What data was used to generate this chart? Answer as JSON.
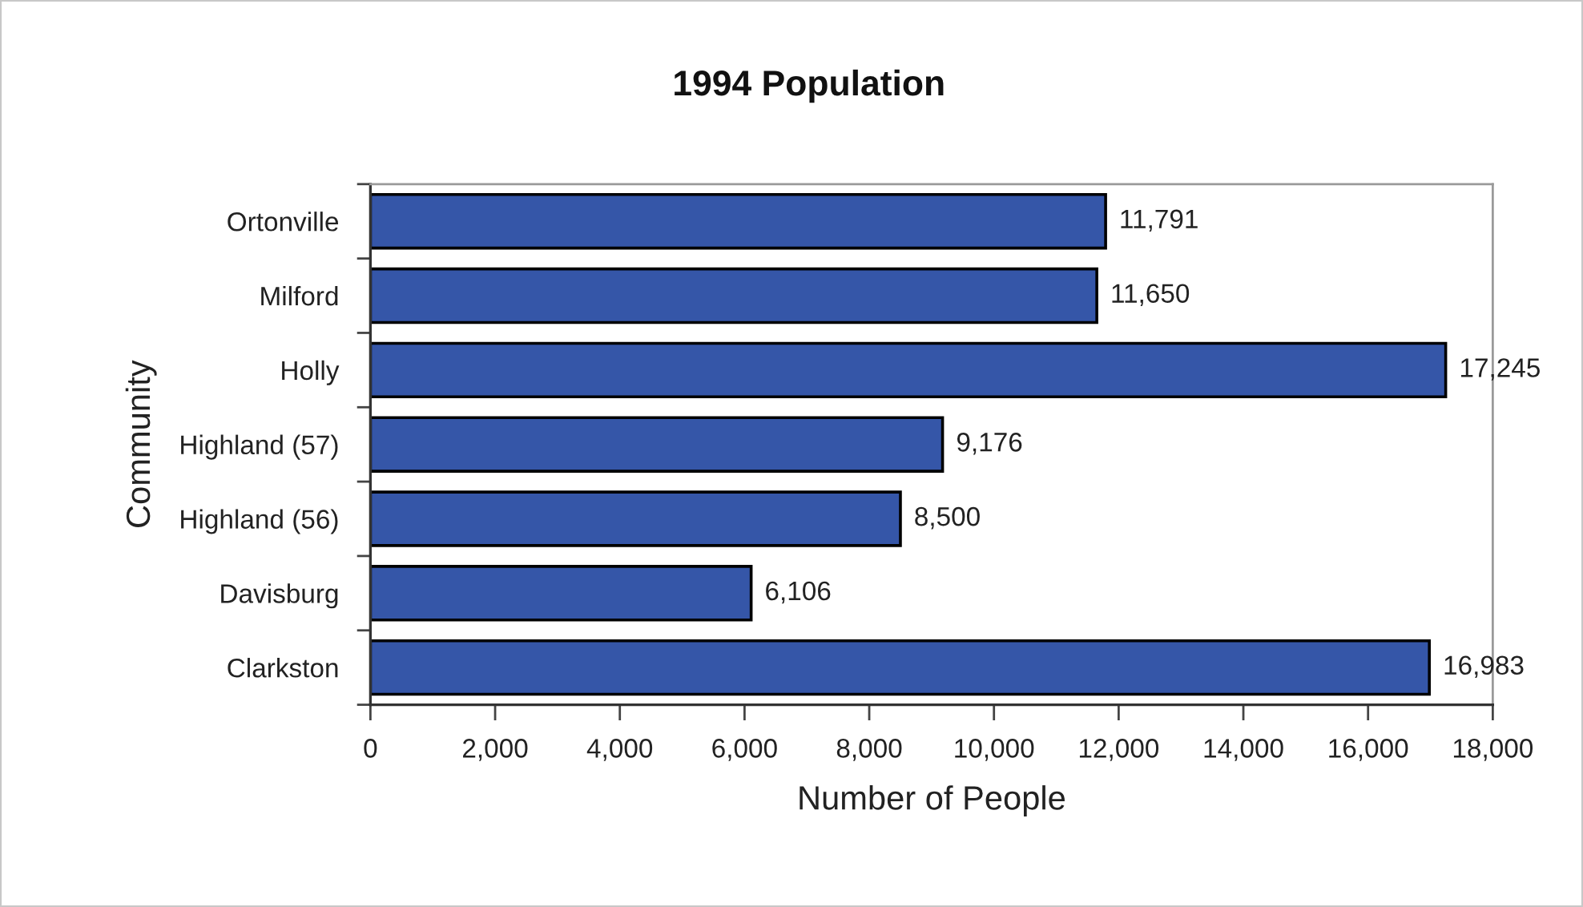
{
  "chart_data": {
    "type": "bar",
    "orientation": "horizontal",
    "title": "1994 Population",
    "xlabel": "Number of People",
    "ylabel": "Community",
    "categories": [
      "Ortonville",
      "Milford",
      "Holly",
      "Highland (57)",
      "Highland (56)",
      "Davisburg",
      "Clarkston"
    ],
    "values": [
      11791,
      11650,
      17245,
      9176,
      8500,
      6106,
      16983
    ],
    "value_labels": [
      "11,791",
      "11,650",
      "17,245",
      "9,176",
      "8,500",
      "6,106",
      "16,983"
    ],
    "color": "#3556a8",
    "xlim": [
      0,
      18000
    ],
    "xticks": [
      0,
      {
        "value": 2000,
        "label": "2,000"
      },
      {
        "value": 4000,
        "label": "4,000"
      },
      {
        "value": 6000,
        "label": "6,000"
      },
      {
        "value": 8000,
        "label": "8,000"
      },
      {
        "value": 10000,
        "label": "10,000"
      },
      {
        "value": 12000,
        "label": "12,000"
      },
      {
        "value": 14000,
        "label": "14,000"
      },
      {
        "value": 16000,
        "label": "16,000"
      },
      {
        "value": 18000,
        "label": "18,000"
      }
    ],
    "grid": false,
    "legend": false
  }
}
